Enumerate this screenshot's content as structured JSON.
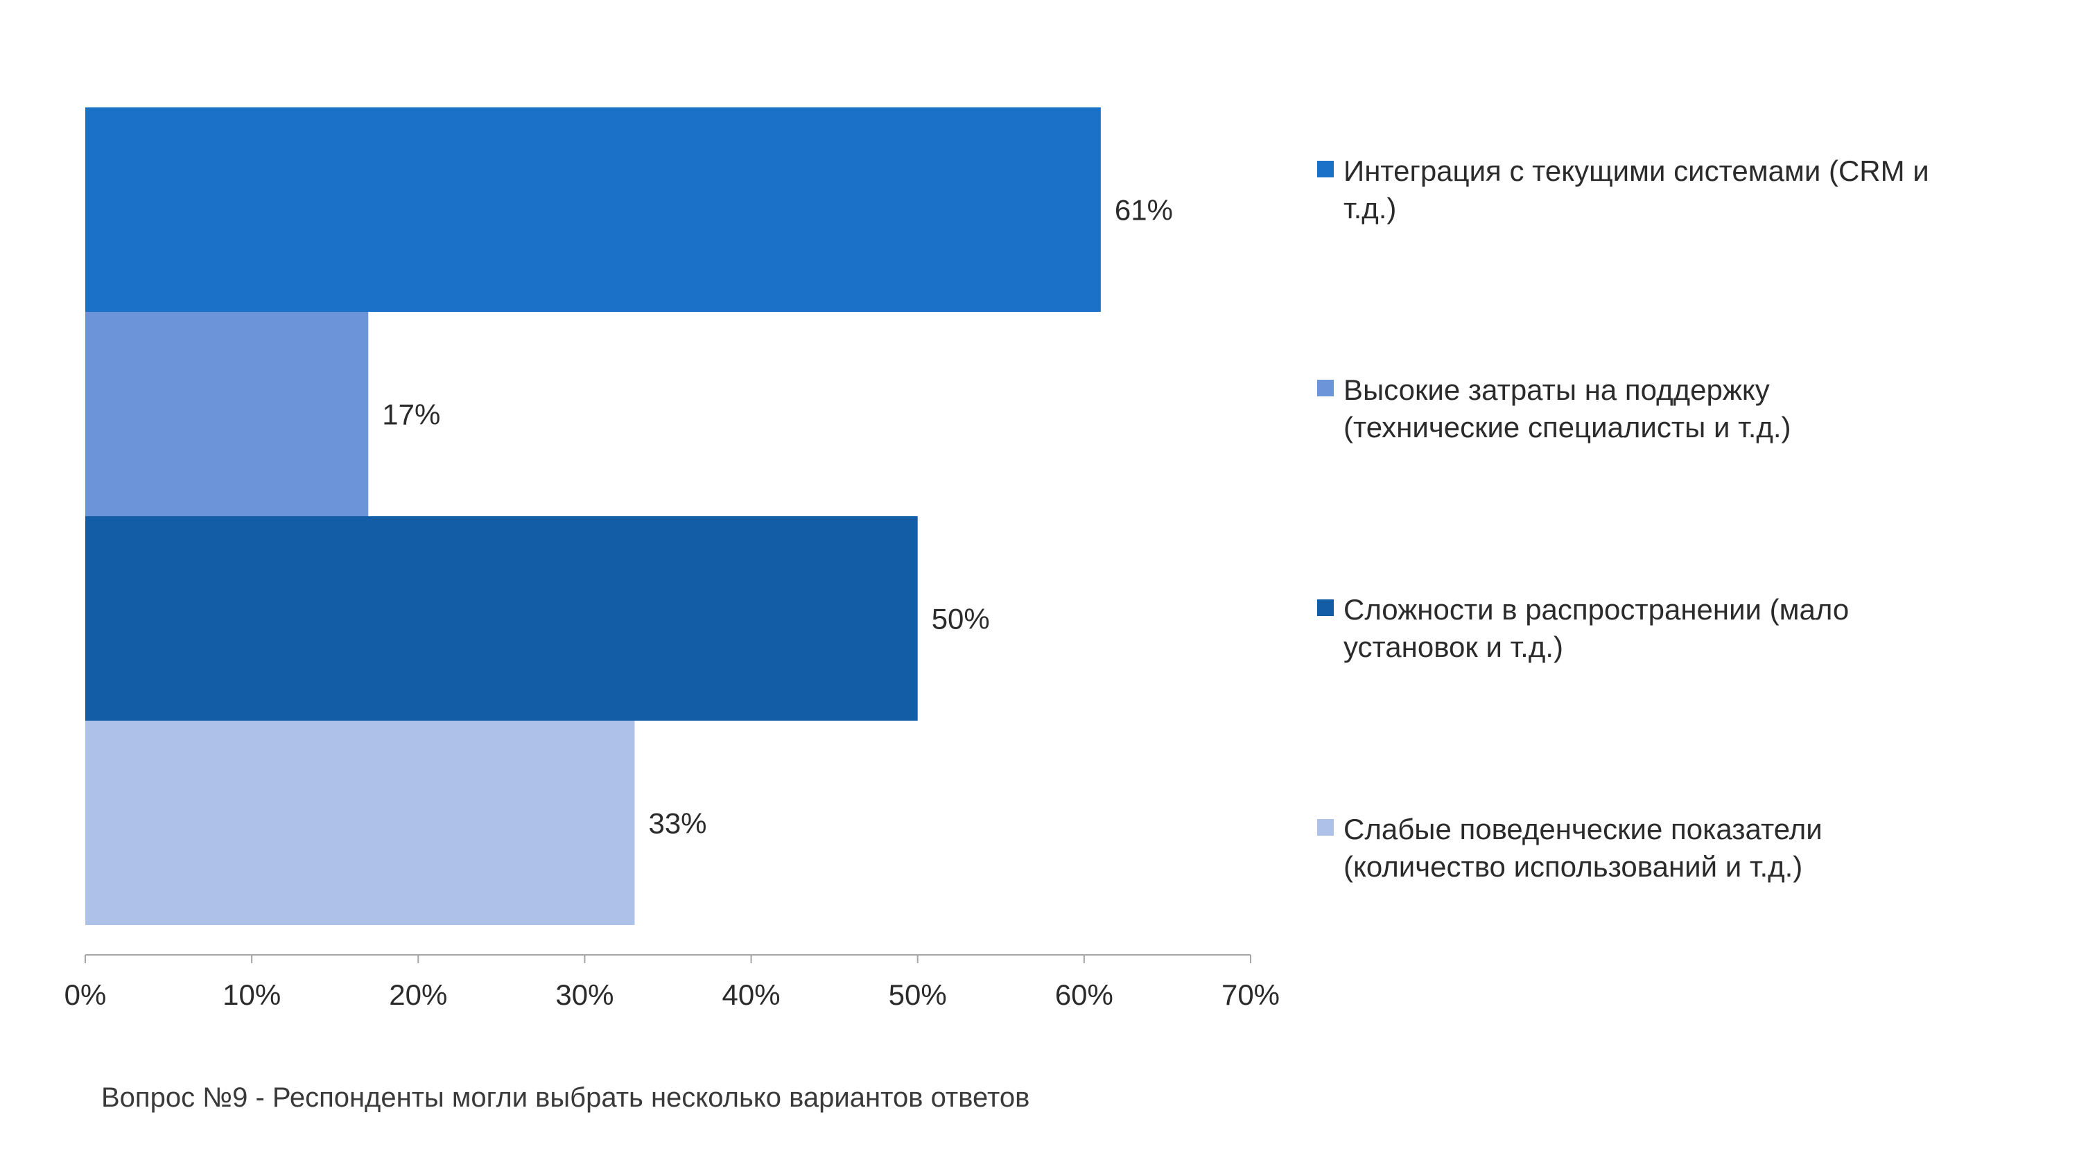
{
  "chart_data": {
    "type": "bar",
    "orientation": "horizontal",
    "categories": [
      "Интеграция с текущими системами (CRM и т.д.)",
      "Высокие затраты на поддержку (технические специалисты и т.д.)",
      "Сложности в распространении (мало установок и т.д.)",
      "Слабые поведенческие показатели (количество использований и т.д.)"
    ],
    "values": [
      61,
      17,
      50,
      33
    ],
    "value_labels": [
      "61%",
      "17%",
      "50%",
      "33%"
    ],
    "colors": [
      "#1b70c8",
      "#6b95d8",
      "#135ca6",
      "#aec1e8"
    ],
    "xlim": [
      0,
      70
    ],
    "xticks": [
      0,
      10,
      20,
      30,
      40,
      50,
      60,
      70
    ],
    "xtick_labels": [
      "0%",
      "10%",
      "20%",
      "30%",
      "40%",
      "50%",
      "60%",
      "70%"
    ],
    "legend_position": "right",
    "grid": false
  },
  "legend": {
    "items": [
      {
        "line1": "Интеграция с текущими системами (CRM и",
        "line2": "т.д.)"
      },
      {
        "line1": "Высокие затраты на поддержку",
        "line2": "(технические специалисты и т.д.)"
      },
      {
        "line1": "Сложности в распространении (мало",
        "line2": "установок и т.д.)"
      },
      {
        "line1": "Слабые поведенческие показатели",
        "line2": "(количество использований и т.д.)"
      }
    ]
  },
  "footnote": "Вопрос №9 - Респонденты могли выбрать несколько вариантов ответов"
}
